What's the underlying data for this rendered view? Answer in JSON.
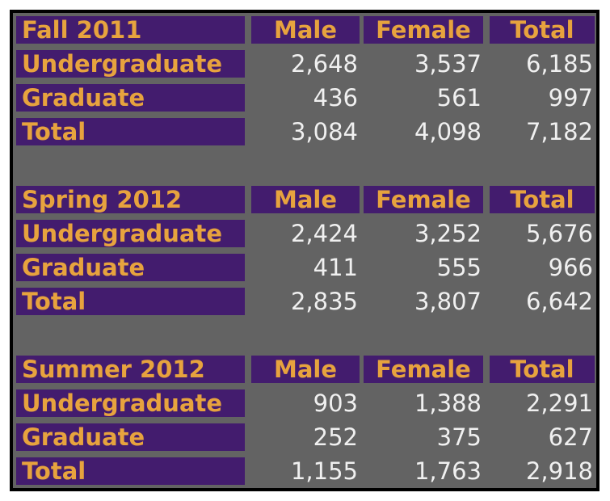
{
  "columns": [
    "Male",
    "Female",
    "Total"
  ],
  "sections": [
    {
      "term": "Fall 2011",
      "rows": [
        {
          "label": "Undergraduate",
          "male": "2,648",
          "female": "3,537",
          "total": "6,185"
        },
        {
          "label": "Graduate",
          "male": "436",
          "female": "561",
          "total": "997"
        },
        {
          "label": "Total",
          "male": "3,084",
          "female": "4,098",
          "total": "7,182"
        }
      ]
    },
    {
      "term": "Spring 2012",
      "rows": [
        {
          "label": "Undergraduate",
          "male": "2,424",
          "female": "3,252",
          "total": "5,676"
        },
        {
          "label": "Graduate",
          "male": "411",
          "female": "555",
          "total": "966"
        },
        {
          "label": "Total",
          "male": "2,835",
          "female": "3,807",
          "total": "6,642"
        }
      ]
    },
    {
      "term": "Summer 2012",
      "rows": [
        {
          "label": "Undergraduate",
          "male": "903",
          "female": "1,388",
          "total": "2,291"
        },
        {
          "label": "Graduate",
          "male": "252",
          "female": "375",
          "total": "627"
        },
        {
          "label": "Total",
          "male": "1,155",
          "female": "1,763",
          "total": "2,918"
        }
      ]
    }
  ],
  "colors": {
    "frame": "#000000",
    "panel": "#636363",
    "header_fill": "#431c6e",
    "header_text": "#e7a33e",
    "number_text": "#f0f0f0"
  }
}
